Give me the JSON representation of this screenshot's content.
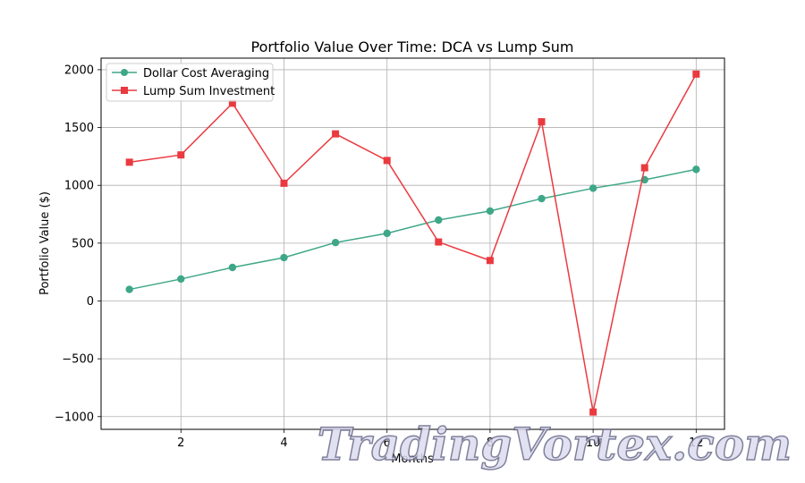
{
  "chart_data": {
    "type": "line",
    "title": "Portfolio Value Over Time: DCA vs Lump Sum",
    "xlabel": "Months",
    "ylabel": "Portfolio Value ($)",
    "xlim": [
      0.45,
      12.55
    ],
    "ylim": [
      -1110,
      2100
    ],
    "x_ticks": [
      2,
      4,
      6,
      8,
      10,
      12
    ],
    "y_ticks": [
      -1000,
      -500,
      0,
      500,
      1000,
      1500,
      2000
    ],
    "grid": true,
    "legend_position": "top-left",
    "x": [
      1,
      2,
      3,
      4,
      5,
      6,
      7,
      8,
      9,
      10,
      11,
      12
    ],
    "series": [
      {
        "name": "Dollar Cost Averaging",
        "color": "#3fa788",
        "marker": "circle",
        "values": [
          100,
          190,
          290,
          375,
          505,
          585,
          700,
          778,
          885,
          975,
          1048,
          1138
        ]
      },
      {
        "name": "Lump Sum Investment",
        "color": "#ea3a40",
        "marker": "square",
        "values": [
          1200,
          1263,
          1710,
          1018,
          1445,
          1215,
          510,
          350,
          1550,
          -960,
          1152,
          1962
        ]
      }
    ]
  },
  "watermark": "TradingVortex.com"
}
